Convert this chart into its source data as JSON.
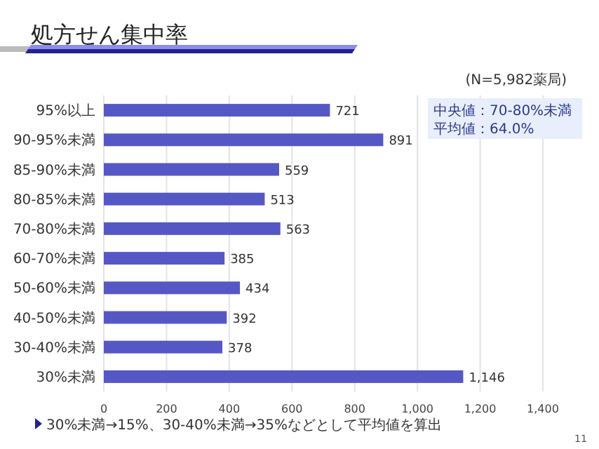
{
  "chart_data": {
    "type": "bar",
    "orientation": "horizontal",
    "title": "処方せん集中率",
    "categories": [
      "95%以上",
      "90-95%未満",
      "85-90%未満",
      "80-85%未満",
      "70-80%未満",
      "60-70%未満",
      "50-60%未満",
      "40-50%未満",
      "30-40%未満",
      "30%未満"
    ],
    "values": [
      721,
      891,
      559,
      513,
      563,
      385,
      434,
      392,
      378,
      1146
    ],
    "color": "#5558c4",
    "xlim": [
      0,
      1400
    ],
    "xticks": [
      0,
      200,
      400,
      600,
      800,
      {
        "value": 1000,
        "label": "1,000"
      },
      {
        "value": 1200,
        "label": "1,200"
      },
      {
        "value": 1400,
        "label": "1,400"
      }
    ],
    "value_labels": [
      "721",
      "891",
      "559",
      "513",
      "563",
      "385",
      "434",
      "392",
      "378",
      "1,146"
    ],
    "grid": "x",
    "annotations": [
      "(N=5,982薬局)",
      "中央値：70-80%未満",
      "平均値：64.0%",
      "30%未満→15%、30-40%未満→35%などとして平均値を算出",
      "11"
    ]
  }
}
